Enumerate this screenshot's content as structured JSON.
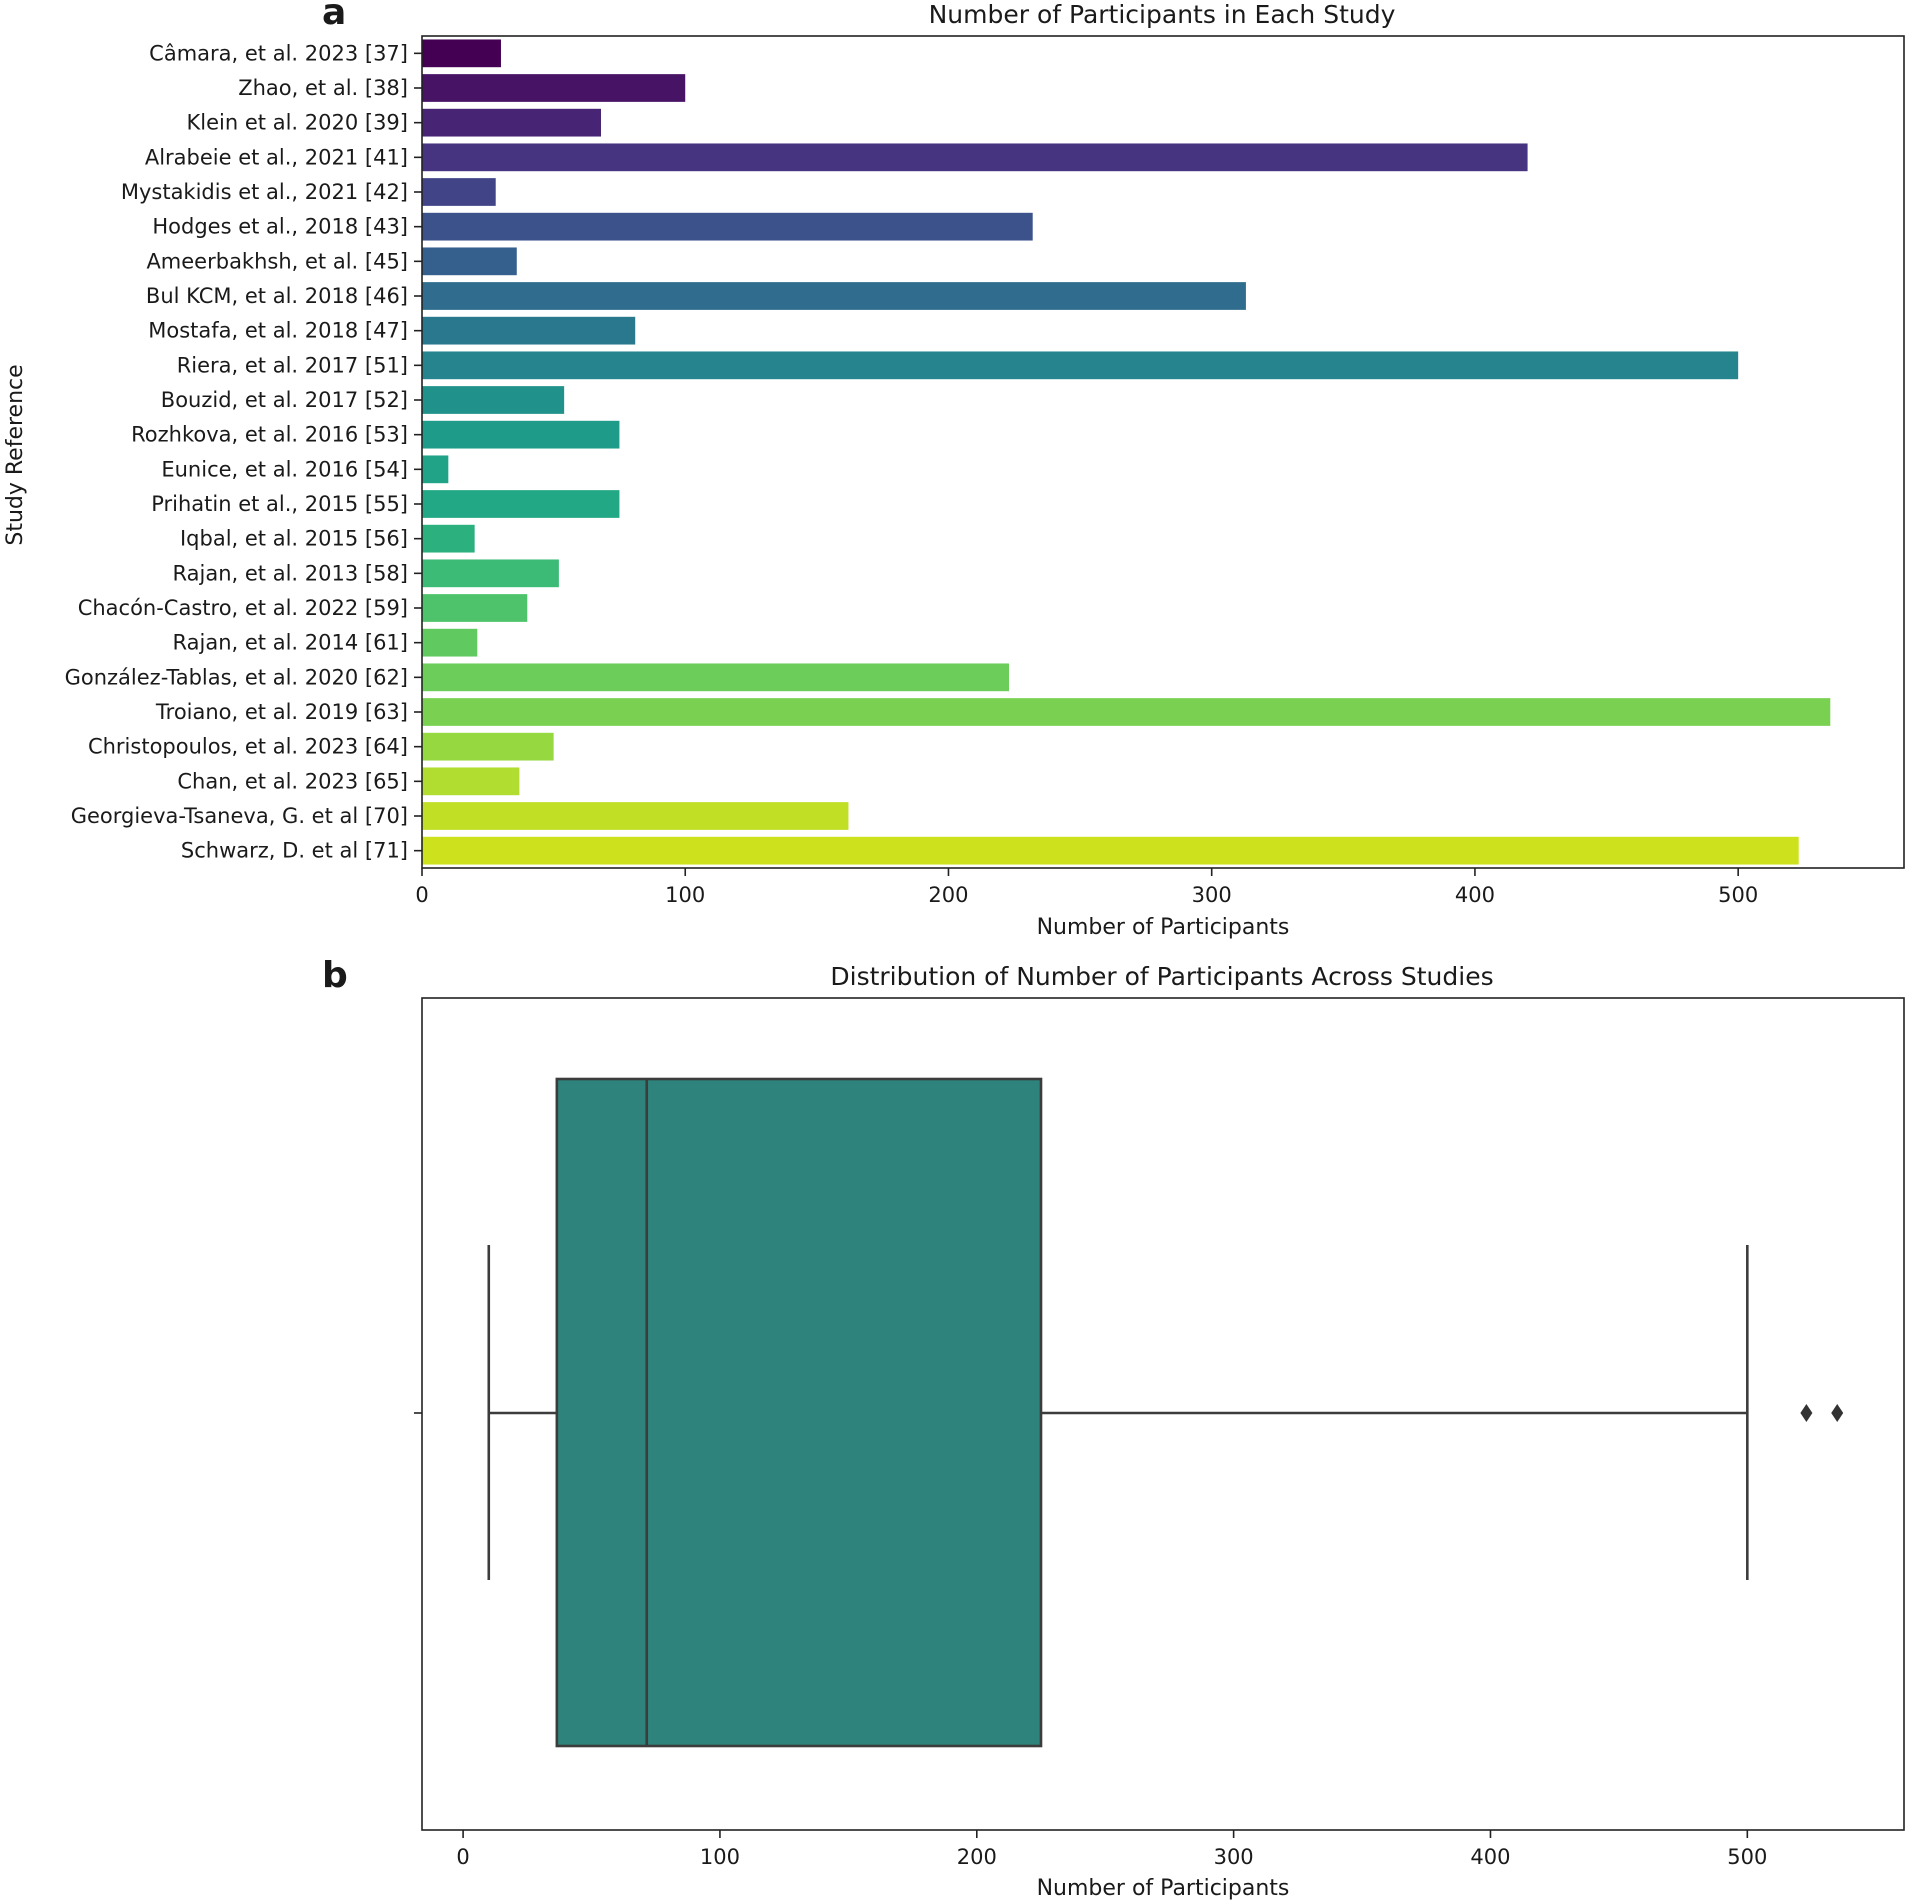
{
  "chart_data": [
    {
      "type": "bar",
      "orientation": "horizontal",
      "panel_label": "a",
      "title": "Number of Participants in Each Study",
      "xlabel": "Number of Participants",
      "ylabel": "Study Reference",
      "xlim": [
        0,
        563
      ],
      "xticks": [
        0,
        100,
        200,
        300,
        400,
        500
      ],
      "categories": [
        "Câmara, et al. 2023 [37]",
        "Zhao, et al. [38]",
        "Klein et al. 2020 [39]",
        "Alrabeie et al., 2021 [41]",
        "Mystakidis et al., 2021 [42]",
        "Hodges et al., 2018 [43]",
        "Ameerbakhsh, et al. [45]",
        "Bul KCM, et al. 2018 [46]",
        "Mostafa, et al. 2018 [47]",
        "Riera, et al. 2017 [51]",
        "Bouzid, et al. 2017 [52]",
        "Rozhkova, et al. 2016 [53]",
        "Eunice, et al. 2016 [54]",
        "Prihatin et al., 2015 [55]",
        "Iqbal, et al. 2015 [56]",
        "Rajan, et al. 2013 [58]",
        "Chacón-Castro, et al. 2022 [59]",
        "Rajan, et al. 2014 [61]",
        "González-Tablas, et al. 2020 [62]",
        "Troiano, et al. 2019 [63]",
        "Christopoulos, et al. 2023 [64]",
        "Chan, et al. 2023 [65]",
        "Georgieva-Tsaneva, G. et al [70]",
        "Schwarz, D. et al [71]"
      ],
      "values": [
        30,
        100,
        68,
        420,
        28,
        232,
        36,
        313,
        81,
        500,
        54,
        75,
        10,
        75,
        20,
        52,
        40,
        21,
        223,
        535,
        50,
        37,
        162,
        523
      ],
      "colors": [
        "#440154",
        "#471365",
        "#482475",
        "#463480",
        "#414487",
        "#3b528b",
        "#355f8d",
        "#2f6c8e",
        "#2a788e",
        "#25848e",
        "#21918c",
        "#1e9c89",
        "#20a386",
        "#22a884",
        "#2cb17e",
        "#3bbb75",
        "#4ec36b",
        "#60ca60",
        "#6ccd5a",
        "#7ad151",
        "#95d840",
        "#b0dd2f",
        "#c0df25",
        "#cde11d"
      ]
    },
    {
      "type": "box",
      "orientation": "horizontal",
      "panel_label": "b",
      "title": "Distribution of Number of Participants Across Studies",
      "xlabel": "Number of Participants",
      "xlim": [
        -16,
        561
      ],
      "xticks": [
        0,
        100,
        200,
        300,
        400,
        500
      ],
      "whisker_low": 10,
      "q1": 36.5,
      "median": 71.5,
      "q3": 225,
      "whisker_high": 500,
      "outliers": [
        523,
        535
      ],
      "color": "#2e837c"
    }
  ]
}
